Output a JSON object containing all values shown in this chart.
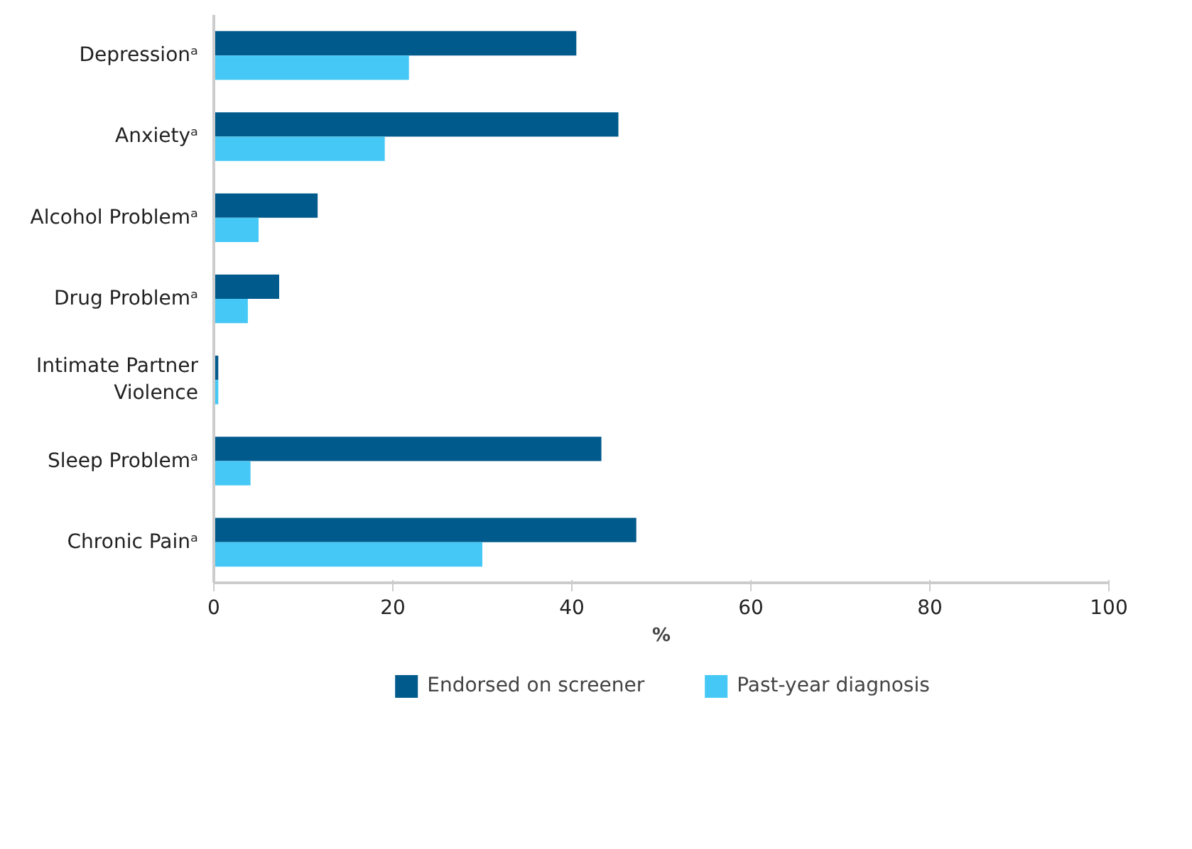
{
  "chart_data": {
    "type": "bar",
    "orientation": "horizontal",
    "xlabel": "%",
    "categories": [
      "Depressionᵃ",
      "Anxietyᵃ",
      "Alcohol Problemᵃ",
      "Drug Problemᵃ",
      "Intimate Partner Violence",
      "Sleep Problemᵃ",
      "Chronic Painᵃ"
    ],
    "series": [
      {
        "name": "Endorsed on screener",
        "color": "#005a8c",
        "values": [
          40.5,
          45.2,
          11.6,
          7.3,
          0.5,
          43.3,
          47.2
        ]
      },
      {
        "name": "Past-year diagnosis",
        "color": "#45c8f5",
        "values": [
          21.8,
          19.1,
          5.0,
          3.8,
          0.5,
          4.1,
          30.0
        ]
      }
    ],
    "xlim": [
      0,
      100
    ],
    "xticks": [
      0,
      20,
      40,
      60,
      80,
      100
    ],
    "grid": false,
    "legend": "bottom"
  }
}
